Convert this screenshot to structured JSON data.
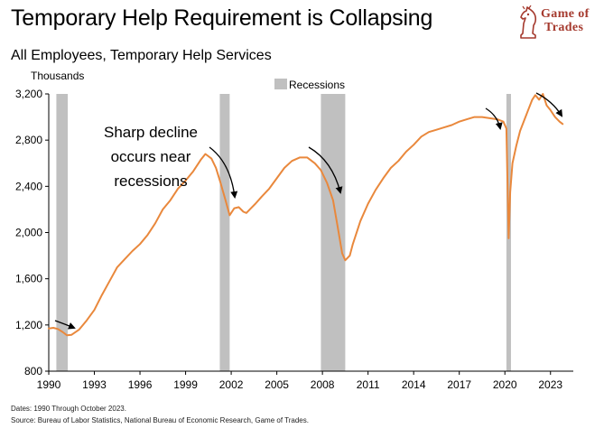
{
  "header": {
    "title": "Temporary Help Requirement is Collapsing",
    "subtitle": "All Employees, Temporary Help Services"
  },
  "logo": {
    "line1": "Game of",
    "line2": "Trades",
    "icon": "chess-knight-icon",
    "color": "#a53a2e"
  },
  "chart_data": {
    "type": "line",
    "title": "Temporary Help Requirement is Collapsing",
    "subtitle": "All Employees, Temporary Help Services",
    "ylabel": "Thousands",
    "xlabel": "",
    "ylim": [
      800,
      3200
    ],
    "xlim": [
      1990,
      2024.5
    ],
    "yticks": [
      800,
      1200,
      1600,
      2000,
      2400,
      2800,
      3200
    ],
    "ytick_labels": [
      "800",
      "1,200",
      "1,600",
      "2,000",
      "2,400",
      "2,800",
      "3,200"
    ],
    "xticks": [
      1990,
      1993,
      1996,
      1999,
      2002,
      2005,
      2008,
      2011,
      2014,
      2017,
      2020,
      2023
    ],
    "xtick_labels": [
      "1990",
      "1993",
      "1996",
      "1999",
      "2002",
      "2005",
      "2008",
      "2011",
      "2014",
      "2017",
      "2020",
      "2023"
    ],
    "grid": false,
    "legend": {
      "position": "top-center",
      "label": "Recessions",
      "color": "#c0c0c0"
    },
    "line_color": "#e9883c",
    "recessions": [
      {
        "start": 1990.5,
        "end": 1991.25
      },
      {
        "start": 2001.25,
        "end": 2001.9
      },
      {
        "start": 2007.9,
        "end": 2009.5
      },
      {
        "start": 2020.1,
        "end": 2020.4
      }
    ],
    "annotation": {
      "text": "Sharp decline\noccurs near\nrecessions"
    },
    "series": [
      {
        "x": [
          1990.0,
          1990.3,
          1990.6,
          1990.9,
          1991.2,
          1991.5,
          1992.0,
          1992.5,
          1993.0,
          1993.5,
          1994.0,
          1994.5,
          1995.0,
          1995.5,
          1996.0,
          1996.5,
          1997.0,
          1997.5,
          1998.0,
          1998.5,
          1999.0,
          1999.5,
          2000.0,
          2000.3,
          2000.7,
          2001.0,
          2001.3,
          2001.6,
          2001.9,
          2002.2,
          2002.5,
          2002.8,
          2003.0,
          2003.3,
          2003.6,
          2004.0,
          2004.5,
          2005.0,
          2005.5,
          2006.0,
          2006.5,
          2007.0,
          2007.5,
          2007.9,
          2008.3,
          2008.7,
          2009.0,
          2009.3,
          2009.5,
          2009.8,
          2010.0,
          2010.5,
          2011.0,
          2011.5,
          2012.0,
          2012.5,
          2013.0,
          2013.5,
          2014.0,
          2014.5,
          2015.0,
          2015.5,
          2016.0,
          2016.5,
          2017.0,
          2017.5,
          2018.0,
          2018.5,
          2019.0,
          2019.5,
          2019.9,
          2020.1,
          2020.25,
          2020.35,
          2020.5,
          2020.75,
          2021.0,
          2021.5,
          2021.8,
          2022.0,
          2022.25,
          2022.5,
          2022.75,
          2023.0,
          2023.3,
          2023.6,
          2023.8
        ],
        "values": [
          1170,
          1175,
          1165,
          1140,
          1110,
          1115,
          1160,
          1240,
          1330,
          1460,
          1580,
          1700,
          1770,
          1840,
          1900,
          1980,
          2080,
          2200,
          2280,
          2380,
          2450,
          2530,
          2630,
          2680,
          2640,
          2560,
          2430,
          2290,
          2150,
          2210,
          2220,
          2180,
          2170,
          2210,
          2250,
          2310,
          2380,
          2470,
          2560,
          2620,
          2650,
          2650,
          2600,
          2540,
          2430,
          2280,
          2050,
          1820,
          1760,
          1800,
          1900,
          2100,
          2250,
          2370,
          2470,
          2560,
          2620,
          2700,
          2760,
          2830,
          2870,
          2890,
          2910,
          2930,
          2960,
          2980,
          3000,
          3000,
          2990,
          2980,
          2960,
          2900,
          1950,
          2350,
          2600,
          2750,
          2880,
          3050,
          3150,
          3190,
          3150,
          3200,
          3100,
          3060,
          3000,
          2960,
          2940
        ]
      }
    ]
  },
  "footer": {
    "note": "Dates: 1990 Through October 2023.",
    "source": "Source: Bureau of Labor Statistics, National Bureau of Economic Research, Game of Trades."
  }
}
